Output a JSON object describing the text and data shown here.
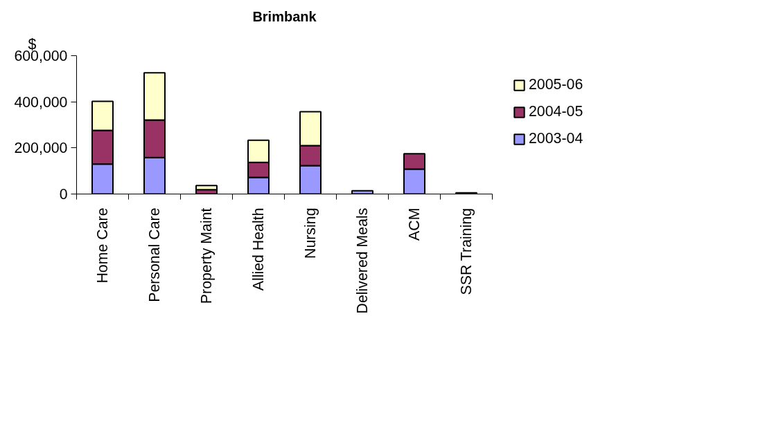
{
  "chart_data": {
    "type": "bar",
    "title": "Brimbank",
    "ylabel": "$",
    "stacked": true,
    "categories": [
      "Home Care",
      "Personal Care",
      "Property Maint",
      "Allied Health",
      "Nursing",
      "Delivered Meals",
      "ACM",
      "SSR Training"
    ],
    "series": [
      {
        "name": "2003-04",
        "color": "#9999ff",
        "values": [
          130000,
          158000,
          null,
          72000,
          123000,
          14000,
          108000,
          5000
        ]
      },
      {
        "name": "2004-05",
        "color": "#993366",
        "values": [
          146000,
          163000,
          19000,
          65000,
          87000,
          0,
          67000,
          null
        ]
      },
      {
        "name": "2005-06",
        "color": "#ffffcc",
        "values": [
          126000,
          205000,
          18000,
          96000,
          147000,
          0,
          0,
          0
        ]
      }
    ],
    "ylim": [
      0,
      600000
    ],
    "yticks": [
      {
        "value": 0,
        "label": "0"
      },
      {
        "value": 200000,
        "label": "200,000"
      },
      {
        "value": 400000,
        "label": "400,000"
      },
      {
        "value": 600000,
        "label": "600,000"
      }
    ],
    "grid": false,
    "legend": "right"
  }
}
